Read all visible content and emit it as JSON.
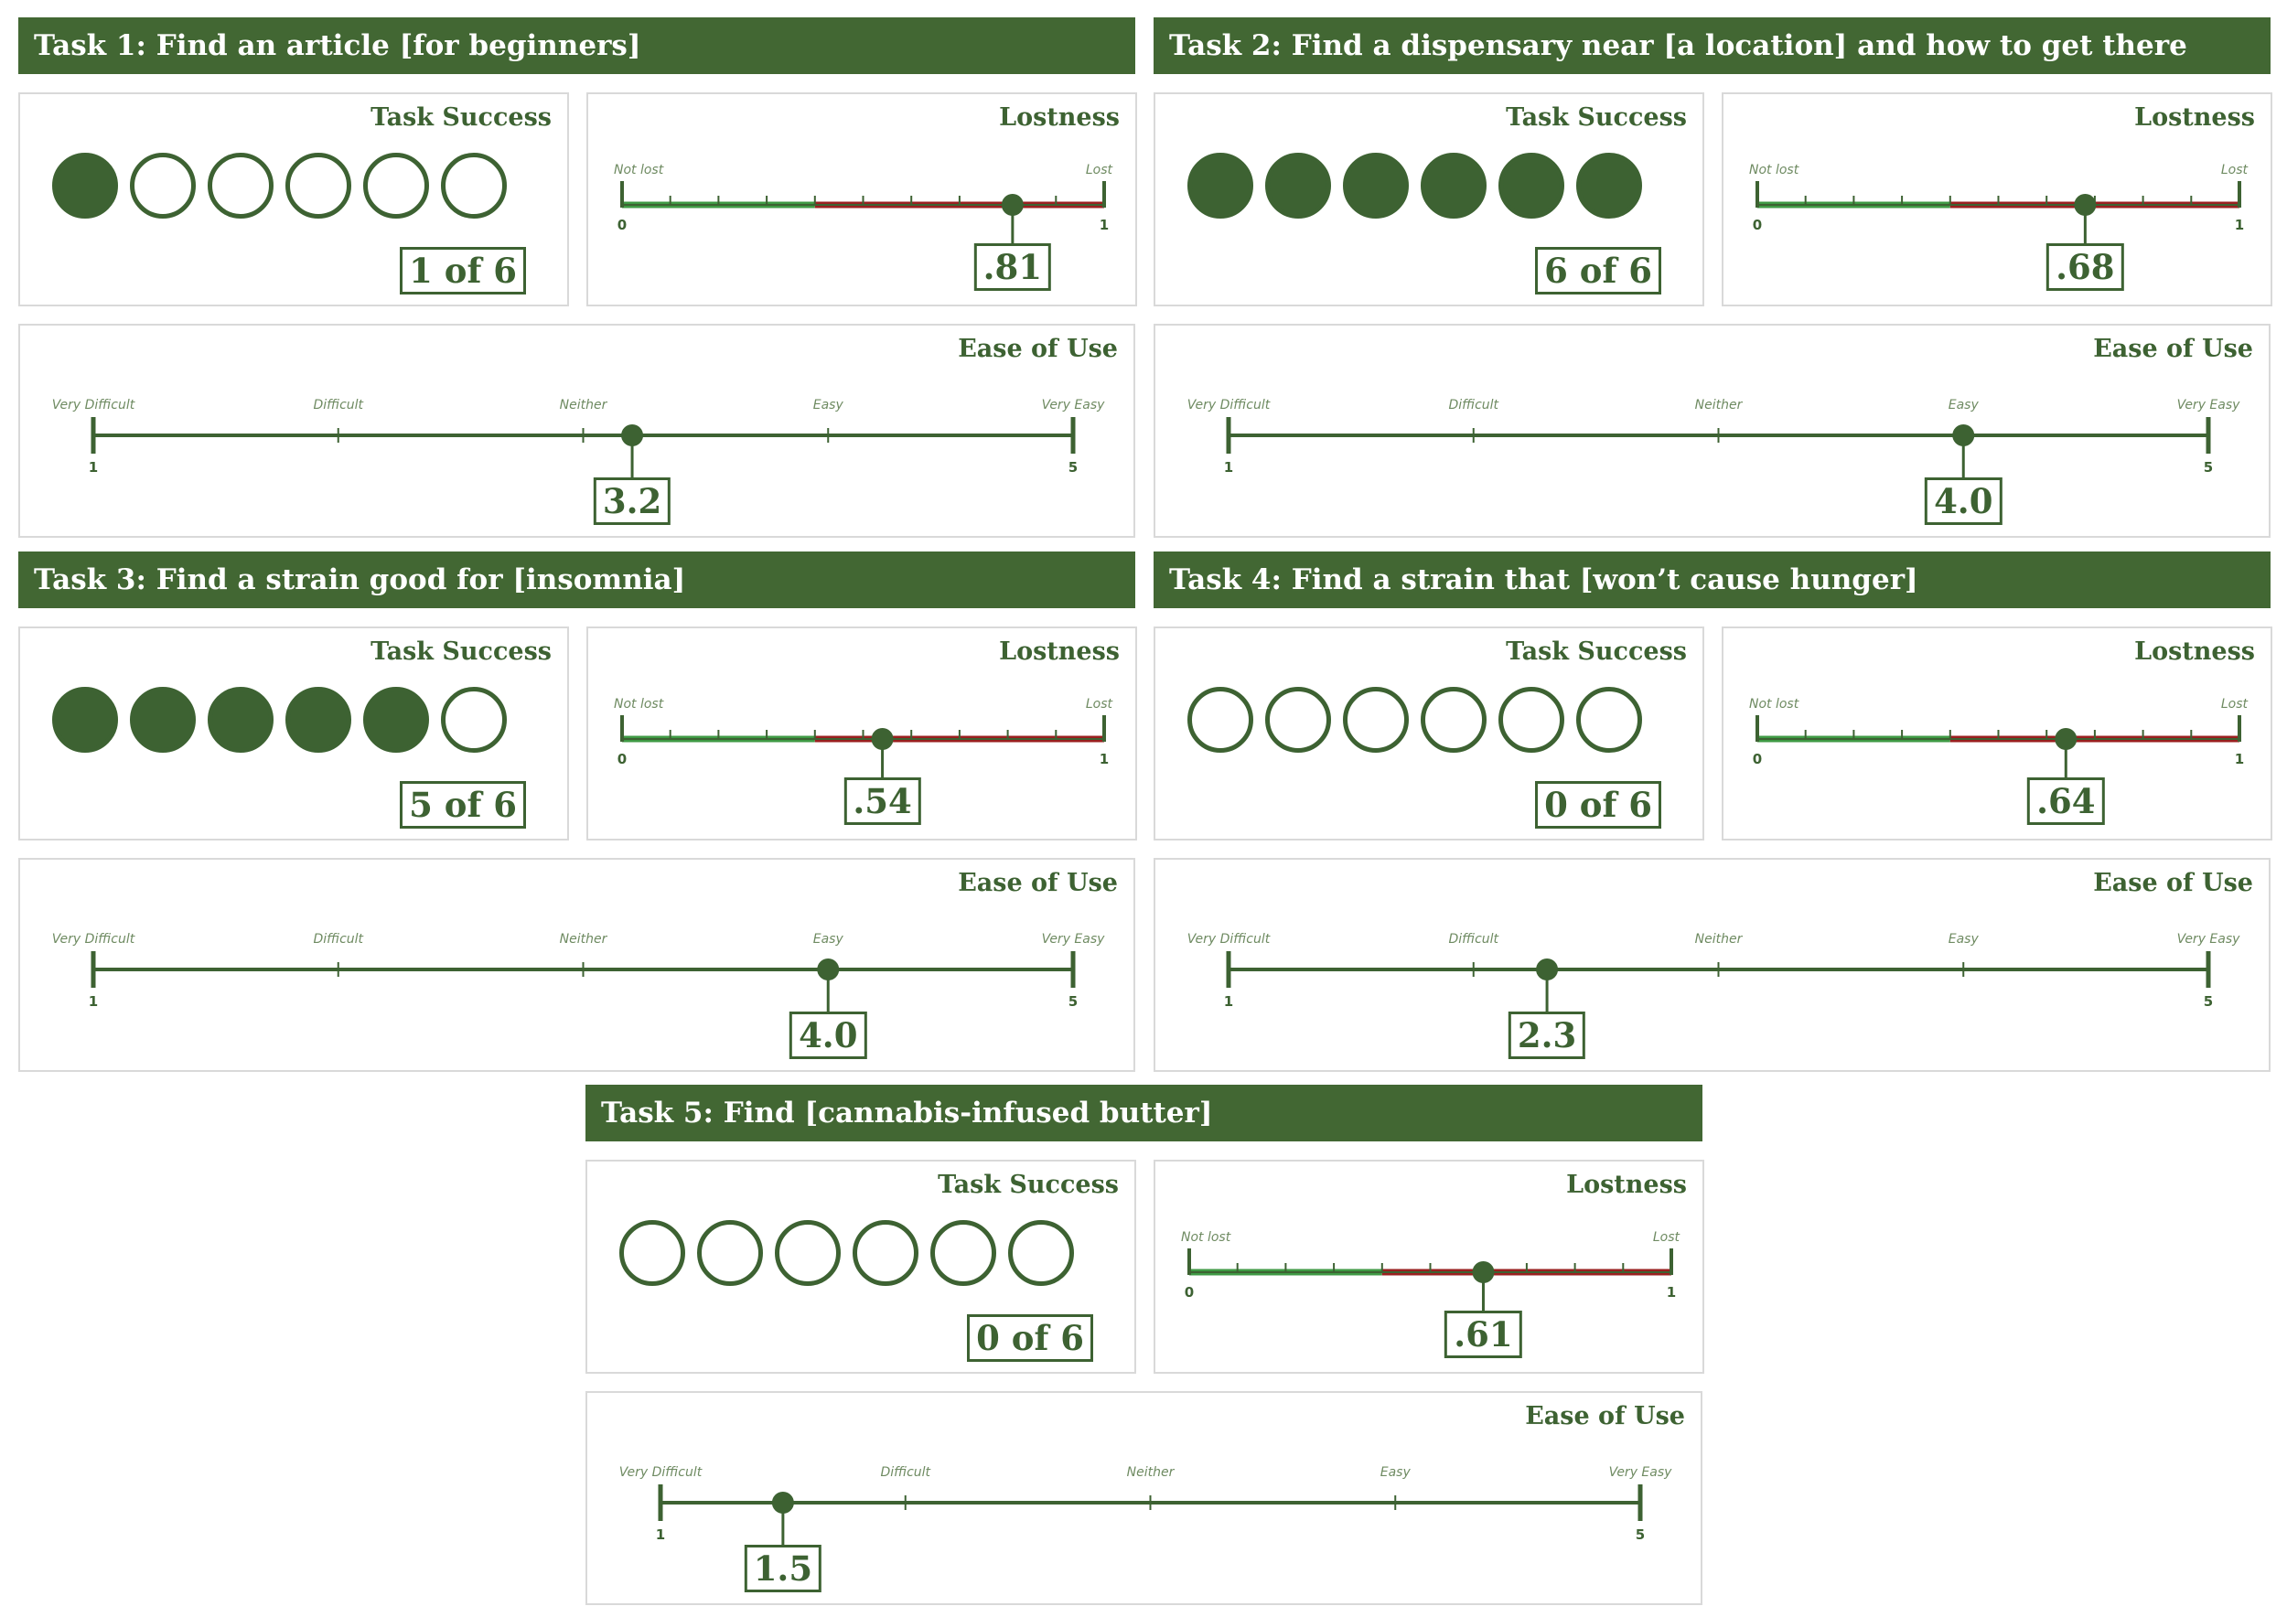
{
  "colors": {
    "dark_green": "#3d6232",
    "header_green": "#426733",
    "light_green": "#3f9a44",
    "red": "#9a1f1f",
    "card_border": "#d9d9d9"
  },
  "labels": {
    "task_success": "Task Success",
    "lostness": "Lostness",
    "ease_of_use": "Ease of Use",
    "lost_low": "Not lost",
    "lost_high": "Lost",
    "lost_min": "0",
    "lost_max": "1",
    "ease_points": [
      "Very Difficult",
      "Difficult",
      "Neither",
      "Easy",
      "Very Easy"
    ],
    "ease_min": "1",
    "ease_max": "5"
  },
  "tasks": [
    {
      "title": "Task 1: Find an article [for beginners]",
      "success_label": "1 of 6",
      "lostness_label": ".81",
      "ease_label": "3.2"
    },
    {
      "title": "Task 2: Find a dispensary near [a location] and how to get there",
      "success_label": "6 of 6",
      "lostness_label": ".68",
      "ease_label": "4.0"
    },
    {
      "title": "Task 3: Find a strain good for [insomnia]",
      "success_label": "5 of 6",
      "lostness_label": ".54",
      "ease_label": "4.0"
    },
    {
      "title": "Task 4: Find a strain that [won’t cause hunger]",
      "success_label": "0 of 6",
      "lostness_label": ".64",
      "ease_label": "2.3"
    },
    {
      "title": "Task 5: Find [cannabis-infused butter]",
      "success_label": "0 of 6",
      "lostness_label": ".61",
      "ease_label": "1.5"
    }
  ],
  "chart_data": [
    {
      "type": "icon-array",
      "task": "Task 1",
      "metric": "Task Success",
      "successes": 1,
      "participants": 6
    },
    {
      "type": "gauge",
      "task": "Task 1",
      "metric": "Lostness",
      "value": 0.81,
      "range": [
        0,
        1
      ]
    },
    {
      "type": "gauge",
      "task": "Task 1",
      "metric": "Ease of Use",
      "value": 3.2,
      "range": [
        1,
        5
      ]
    },
    {
      "type": "icon-array",
      "task": "Task 2",
      "metric": "Task Success",
      "successes": 6,
      "participants": 6
    },
    {
      "type": "gauge",
      "task": "Task 2",
      "metric": "Lostness",
      "value": 0.68,
      "range": [
        0,
        1
      ]
    },
    {
      "type": "gauge",
      "task": "Task 2",
      "metric": "Ease of Use",
      "value": 4.0,
      "range": [
        1,
        5
      ]
    },
    {
      "type": "icon-array",
      "task": "Task 3",
      "metric": "Task Success",
      "successes": 5,
      "participants": 6
    },
    {
      "type": "gauge",
      "task": "Task 3",
      "metric": "Lostness",
      "value": 0.54,
      "range": [
        0,
        1
      ]
    },
    {
      "type": "gauge",
      "task": "Task 3",
      "metric": "Ease of Use",
      "value": 4.0,
      "range": [
        1,
        5
      ]
    },
    {
      "type": "icon-array",
      "task": "Task 4",
      "metric": "Task Success",
      "successes": 0,
      "participants": 6
    },
    {
      "type": "gauge",
      "task": "Task 4",
      "metric": "Lostness",
      "value": 0.64,
      "range": [
        0,
        1
      ]
    },
    {
      "type": "gauge",
      "task": "Task 4",
      "metric": "Ease of Use",
      "value": 2.3,
      "range": [
        1,
        5
      ]
    },
    {
      "type": "icon-array",
      "task": "Task 5",
      "metric": "Task Success",
      "successes": 0,
      "participants": 6
    },
    {
      "type": "gauge",
      "task": "Task 5",
      "metric": "Lostness",
      "value": 0.61,
      "range": [
        0,
        1
      ]
    },
    {
      "type": "gauge",
      "task": "Task 5",
      "metric": "Ease of Use",
      "value": 1.5,
      "range": [
        1,
        5
      ]
    }
  ]
}
